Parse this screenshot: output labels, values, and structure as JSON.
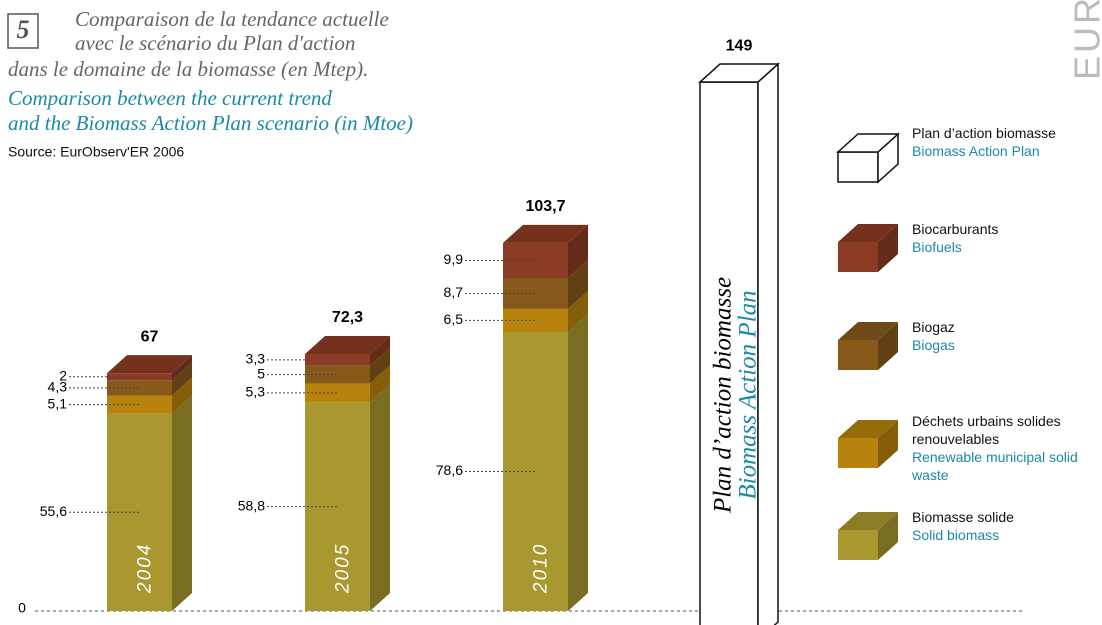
{
  "chart_data": {
    "type": "stacked-bar-3d",
    "figure_number": "5",
    "title_fr": [
      "Comparaison de la tendance actuelle",
      "avec le scénario du Plan d'action",
      "dans le domaine de la biomasse (en Mtep)."
    ],
    "title_en": [
      "Comparison between the current trend",
      "and the Biomass Action Plan scenario (in Mtoe)"
    ],
    "source": "Source: EurObserv'ER 2006",
    "logo": "EURO",
    "categories": [
      "2004",
      "2005",
      "2010"
    ],
    "series": [
      {
        "name": "Biomasse solide",
        "name_en": "Solid biomass",
        "color": "#a8982f",
        "values": [
          55.6,
          58.8,
          78.6
        ],
        "value_labels": [
          "55,6",
          "58,8",
          "78,6"
        ]
      },
      {
        "name": "Déchets urbains solides renouvelables",
        "name_en": "Renewable municipal solid waste",
        "color": "#b7830c",
        "values": [
          5.1,
          5.3,
          6.5
        ],
        "value_labels": [
          "5,1",
          "5,3",
          "6,5"
        ]
      },
      {
        "name": "Biogaz",
        "name_en": "Biogas",
        "color": "#875a1c",
        "values": [
          4.3,
          5,
          8.7
        ],
        "value_labels": [
          "4,3",
          "5",
          "8,7"
        ]
      },
      {
        "name": "Biocarburants",
        "name_en": "Biofuels",
        "color": "#8c3c24",
        "values": [
          2,
          3.3,
          9.9
        ],
        "value_labels": [
          "2",
          "3,3",
          "9,9"
        ]
      }
    ],
    "totals": [
      67,
      72.3,
      103.7
    ],
    "total_labels": [
      "67",
      "72,3",
      "103,7"
    ],
    "plan": {
      "name": "Plan d’action biomasse",
      "name_en": "Biomass Action Plan",
      "bar_name": "Plan d’action biomasse",
      "value": 149,
      "color": "#ffffff"
    },
    "ylim": [
      0,
      160
    ],
    "yticks": [
      0
    ],
    "grid": true
  }
}
